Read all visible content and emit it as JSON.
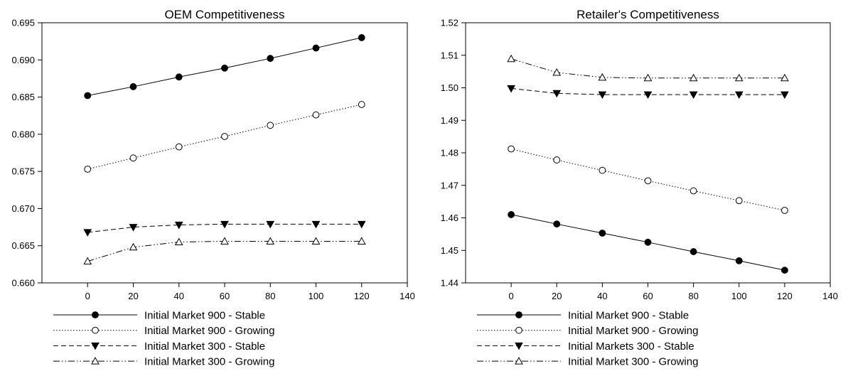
{
  "chart_data": [
    {
      "type": "line",
      "title": "OEM Competitiveness",
      "xlabel": "",
      "ylabel": "",
      "xlim": [
        -20,
        140
      ],
      "ylim": [
        0.66,
        0.695
      ],
      "x_ticks": [
        0,
        20,
        40,
        60,
        80,
        100,
        120,
        140
      ],
      "y_ticks": [
        0.66,
        0.665,
        0.67,
        0.675,
        0.68,
        0.685,
        0.69,
        0.695
      ],
      "y_tick_labels": [
        "0.660",
        "0.665",
        "0.670",
        "0.675",
        "0.680",
        "0.685",
        "0.690",
        "0.695"
      ],
      "x": [
        0,
        20,
        40,
        60,
        80,
        100,
        120
      ],
      "grid": false,
      "legend_position": "bottom",
      "series": [
        {
          "name": "Initial Market 900 - Stable",
          "line": "solid",
          "marker": "filled-circle",
          "values": [
            0.6852,
            0.6864,
            0.6877,
            0.6889,
            0.6902,
            0.6916,
            0.693
          ]
        },
        {
          "name": "Initial Market 900 - Growing",
          "line": "dotted",
          "marker": "open-circle",
          "values": [
            0.6753,
            0.6768,
            0.6783,
            0.6797,
            0.6812,
            0.6826,
            0.684
          ]
        },
        {
          "name": "Initial Market 300 - Stable",
          "line": "dashed",
          "marker": "filled-triangle-down",
          "values": [
            0.6668,
            0.6675,
            0.6678,
            0.6679,
            0.6679,
            0.6679,
            0.6679
          ]
        },
        {
          "name": "Initial Market 300 - Growing",
          "line": "dash-dot-dot",
          "marker": "open-triangle-up",
          "values": [
            0.6629,
            0.6648,
            0.6655,
            0.6656,
            0.6656,
            0.6656,
            0.6656
          ]
        }
      ]
    },
    {
      "type": "line",
      "title": "Retailer's Competitiveness",
      "xlabel": "",
      "ylabel": "",
      "xlim": [
        -20,
        140
      ],
      "ylim": [
        1.44,
        1.52
      ],
      "x_ticks": [
        0,
        20,
        40,
        60,
        80,
        100,
        120,
        140
      ],
      "y_ticks": [
        1.44,
        1.45,
        1.46,
        1.47,
        1.48,
        1.49,
        1.5,
        1.51,
        1.52
      ],
      "y_tick_labels": [
        "1.44",
        "1.45",
        "1.46",
        "1.47",
        "1.48",
        "1.49",
        "1.50",
        "1.51",
        "1.52"
      ],
      "x": [
        0,
        20,
        40,
        60,
        80,
        100,
        120
      ],
      "grid": false,
      "legend_position": "bottom",
      "series": [
        {
          "name": "Initial Market 900 - Stable",
          "line": "solid",
          "marker": "filled-circle",
          "values": [
            1.461,
            1.4581,
            1.4553,
            1.4525,
            1.4496,
            1.4468,
            1.4439
          ]
        },
        {
          "name": "Initial Market 900 - Growing",
          "line": "dotted",
          "marker": "open-circle",
          "values": [
            1.4812,
            1.4778,
            1.4746,
            1.4714,
            1.4683,
            1.4653,
            1.4623
          ]
        },
        {
          "name": "Initial Markets 300 - Stable",
          "line": "dashed",
          "marker": "filled-triangle-down",
          "values": [
            1.4998,
            1.4983,
            1.4979,
            1.4979,
            1.4979,
            1.4979,
            1.4979
          ]
        },
        {
          "name": "Initial Market 300 - Growing",
          "line": "dash-dot-dot",
          "marker": "open-triangle-up",
          "values": [
            1.5089,
            1.5047,
            1.5032,
            1.503,
            1.503,
            1.503,
            1.503
          ]
        }
      ]
    }
  ]
}
